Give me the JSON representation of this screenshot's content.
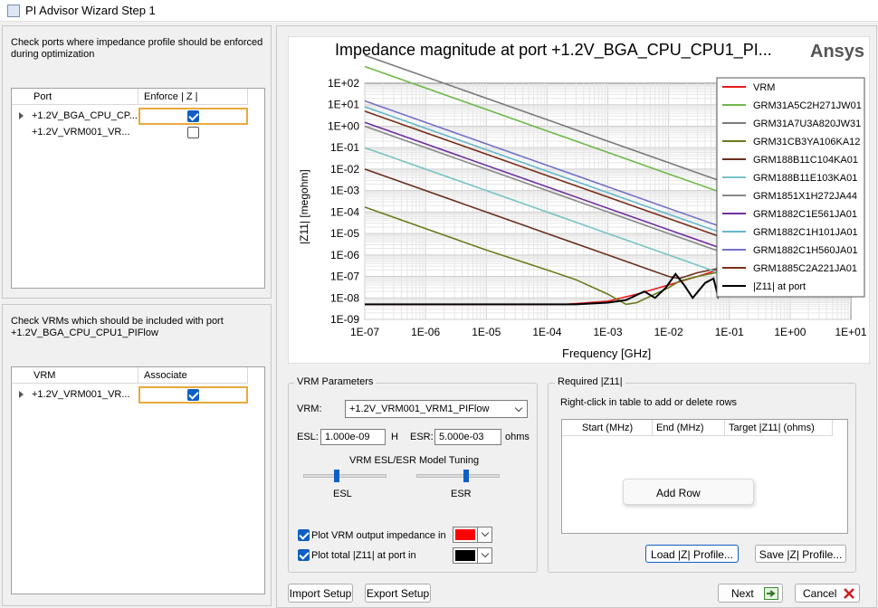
{
  "window": {
    "title": "PI Advisor Wizard Step 1"
  },
  "ports_section": {
    "instruction": "Check ports where impedance profile should be enforced during optimization",
    "columns": [
      "Port",
      "Enforce | Z |"
    ],
    "rows": [
      {
        "port": "+1.2V_BGA_CPU_CP...",
        "enforce": true
      },
      {
        "port": "+1.2V_VRM001_VR...",
        "enforce": false
      }
    ]
  },
  "vrm_section": {
    "instruction": "Check VRMs which should be included with port +1.2V_BGA_CPU_CPU1_PIFlow",
    "columns": [
      "VRM",
      "Associate"
    ],
    "rows": [
      {
        "vrm": "+1.2V_VRM001_VR...",
        "associate": true
      }
    ]
  },
  "chart_data": {
    "type": "line",
    "title": "Impedance magnitude at port +1.2V_BGA_CPU_CPU1_PI...",
    "watermark": "Ansys",
    "xlabel": "Frequency [GHz]",
    "ylabel": "|Z11| [megohm]",
    "x_scale": "log",
    "y_scale": "log",
    "xlim": [
      1e-07,
      10
    ],
    "ylim": [
      1e-09,
      100
    ],
    "x_ticks": [
      "1E-07",
      "1E-06",
      "1E-05",
      "1E-04",
      "1E-03",
      "1E-02",
      "1E-01",
      "1E+00",
      "1E+01"
    ],
    "y_ticks": [
      "1E-09",
      "1E-08",
      "1E-07",
      "1E-06",
      "1E-05",
      "1E-04",
      "1E-03",
      "1E-02",
      "1E-01",
      "1E+00",
      "1E+01",
      "1E+02"
    ],
    "grid": true,
    "legend_position": "top-right",
    "series": [
      {
        "name": "VRM",
        "color": "#e8191b",
        "points": [
          [
            1e-07,
            5e-09
          ],
          [
            0.0002,
            5e-09
          ],
          [
            0.001,
            7e-09
          ],
          [
            0.003,
            1.5e-08
          ],
          [
            0.01,
            4e-08
          ],
          [
            0.03,
            1e-07
          ],
          [
            0.1,
            3e-07
          ]
        ]
      },
      {
        "name": "GRM31A5C2H271JW01",
        "color": "#70b84a",
        "points": [
          [
            1e-07,
            600
          ],
          [
            0.0001,
            0.6
          ],
          [
            0.01,
            0.006
          ],
          [
            0.1,
            0.0006
          ],
          [
            0.35,
            0.00017
          ]
        ]
      },
      {
        "name": "GRM31A7U3A820JW31",
        "color": "#7a7a7a",
        "points": [
          [
            1e-07,
            2000
          ],
          [
            0.0001,
            2
          ],
          [
            0.01,
            0.02
          ],
          [
            0.1,
            0.002
          ],
          [
            0.35,
            0.0006
          ]
        ]
      },
      {
        "name": "GRM31CB3YA106KA12",
        "color": "#6b7a1a",
        "points": [
          [
            1e-07,
            0.00017
          ],
          [
            1e-05,
            1.7e-06
          ],
          [
            0.0001,
            2e-07
          ],
          [
            0.0003,
            7e-08
          ],
          [
            0.001,
            1.5e-08
          ],
          [
            0.002,
            5e-09
          ],
          [
            0.003,
            6e-09
          ],
          [
            0.01,
            3e-08
          ],
          [
            0.015,
            6e-08
          ],
          [
            0.03,
            1e-07
          ],
          [
            0.1,
            2e-07
          ]
        ]
      },
      {
        "name": "GRM188B11C104KA01",
        "color": "#6b2f1f",
        "points": [
          [
            1e-07,
            0.01
          ],
          [
            1e-05,
            0.0001
          ],
          [
            0.0001,
            1e-05
          ],
          [
            0.001,
            1e-06
          ],
          [
            0.01,
            1e-07
          ],
          [
            0.015,
            8e-08
          ],
          [
            0.03,
            1.5e-07
          ],
          [
            0.1,
            3e-07
          ]
        ]
      },
      {
        "name": "GRM188B11E103KA01",
        "color": "#77c4c6",
        "points": [
          [
            1e-07,
            0.1
          ],
          [
            1e-05,
            0.001
          ],
          [
            0.001,
            1e-05
          ],
          [
            0.01,
            1e-06
          ],
          [
            0.1,
            1e-07
          ],
          [
            0.2,
            2e-07
          ]
        ]
      },
      {
        "name": "GRM1851X1H272JA44",
        "color": "#888888",
        "points": [
          [
            1e-07,
            1
          ],
          [
            0.0001,
            0.001
          ],
          [
            0.01,
            1e-05
          ],
          [
            0.1,
            1e-06
          ],
          [
            0.3,
            4e-07
          ]
        ]
      },
      {
        "name": "GRM1882C1E561JA01",
        "color": "#7030a0",
        "points": [
          [
            1e-07,
            1.5
          ],
          [
            0.0001,
            0.0015
          ],
          [
            0.01,
            1.5e-05
          ],
          [
            0.1,
            1.5e-06
          ],
          [
            0.3,
            5e-07
          ]
        ]
      },
      {
        "name": "GRM1882C1H101JA01",
        "color": "#66b8c9",
        "points": [
          [
            1e-07,
            8
          ],
          [
            0.0001,
            0.008
          ],
          [
            0.01,
            8e-05
          ],
          [
            0.1,
            8e-06
          ],
          [
            0.35,
            2e-06
          ]
        ]
      },
      {
        "name": "GRM1882C1H560JA01",
        "color": "#7471c8",
        "points": [
          [
            1e-07,
            15
          ],
          [
            0.0001,
            0.015
          ],
          [
            0.01,
            0.00015
          ],
          [
            0.1,
            1.5e-05
          ],
          [
            0.35,
            4e-06
          ]
        ]
      },
      {
        "name": "GRM1885C2A221JA01",
        "color": "#7b2f1a",
        "points": [
          [
            1e-07,
            5
          ],
          [
            0.0001,
            0.005
          ],
          [
            0.01,
            5e-05
          ],
          [
            0.1,
            5e-06
          ],
          [
            0.35,
            1.5e-06
          ]
        ]
      },
      {
        "name": "|Z11| at port",
        "color": "#000000",
        "points": [
          [
            1e-07,
            5e-09
          ],
          [
            0.0003,
            5e-09
          ],
          [
            0.001,
            6e-09
          ],
          [
            0.002,
            8e-09
          ],
          [
            0.004,
            2e-08
          ],
          [
            0.006,
            1e-08
          ],
          [
            0.009,
            3e-08
          ],
          [
            0.013,
            1.3e-07
          ],
          [
            0.018,
            4e-08
          ],
          [
            0.025,
            1e-08
          ],
          [
            0.04,
            5e-08
          ],
          [
            0.055,
            8e-08
          ],
          [
            0.065,
            1.2e-08
          ],
          [
            0.08,
            9e-08
          ],
          [
            0.1,
            1e-07
          ]
        ]
      }
    ]
  },
  "vrm_params": {
    "title": "VRM Parameters",
    "vrm_label": "VRM:",
    "vrm_value": "+1.2V_VRM001_VRM1_PIFlow",
    "esl_label": "ESL:",
    "esl_value": "1.000e-09",
    "esl_unit": "H",
    "esr_label": "ESR:",
    "esr_value": "5.000e-03",
    "esr_unit": "ohms",
    "tuning_title": "VRM ESL/ESR Model Tuning",
    "esl_slider_label": "ESL",
    "esr_slider_label": "ESR",
    "esl_slider_value": 0.4,
    "esr_slider_value": 0.6,
    "plot_vrm_label": "Plot VRM output impedance in",
    "plot_vrm_checked": true,
    "plot_vrm_color": "#ff0000",
    "plot_total_label": "Plot total |Z11| at port in",
    "plot_total_checked": true,
    "plot_total_color": "#000000"
  },
  "required_z": {
    "title": "Required |Z11|",
    "hint": "Right-click in table to add or delete rows",
    "columns": [
      "Start (MHz)",
      "End (MHz)",
      "Target |Z11| (ohms)"
    ],
    "context_menu_item": "Add Row",
    "load_button": "Load |Z| Profile...",
    "save_button": "Save |Z| Profile..."
  },
  "footer": {
    "import_button": "Import Setup",
    "export_button": "Export Setup",
    "next_button": "Next",
    "cancel_button": "Cancel"
  }
}
